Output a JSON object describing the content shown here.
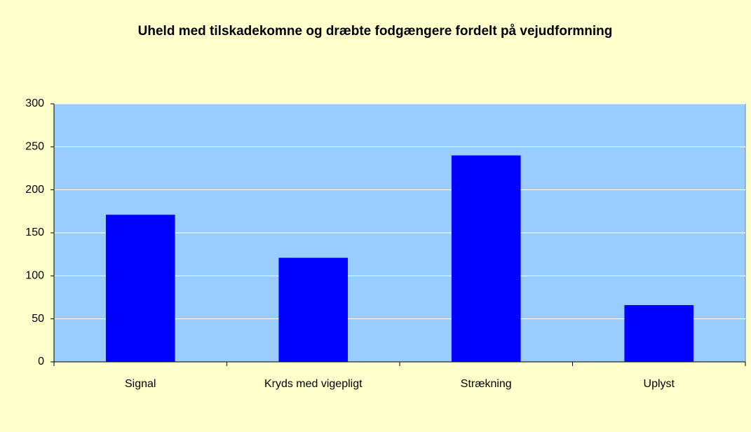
{
  "chart_data": {
    "type": "bar",
    "title": "Uheld med tilskadekomne og dræbte fodgængere fordelt på vejudformning",
    "categories": [
      "Signal",
      "Kryds med vigepligt",
      "Strækning",
      "Uplyst"
    ],
    "values": [
      171,
      121,
      240,
      66
    ],
    "color": "#0000ff",
    "ylim": [
      0,
      300
    ],
    "yticks": [
      0,
      50,
      100,
      150,
      200,
      250,
      300
    ],
    "grid": true
  }
}
